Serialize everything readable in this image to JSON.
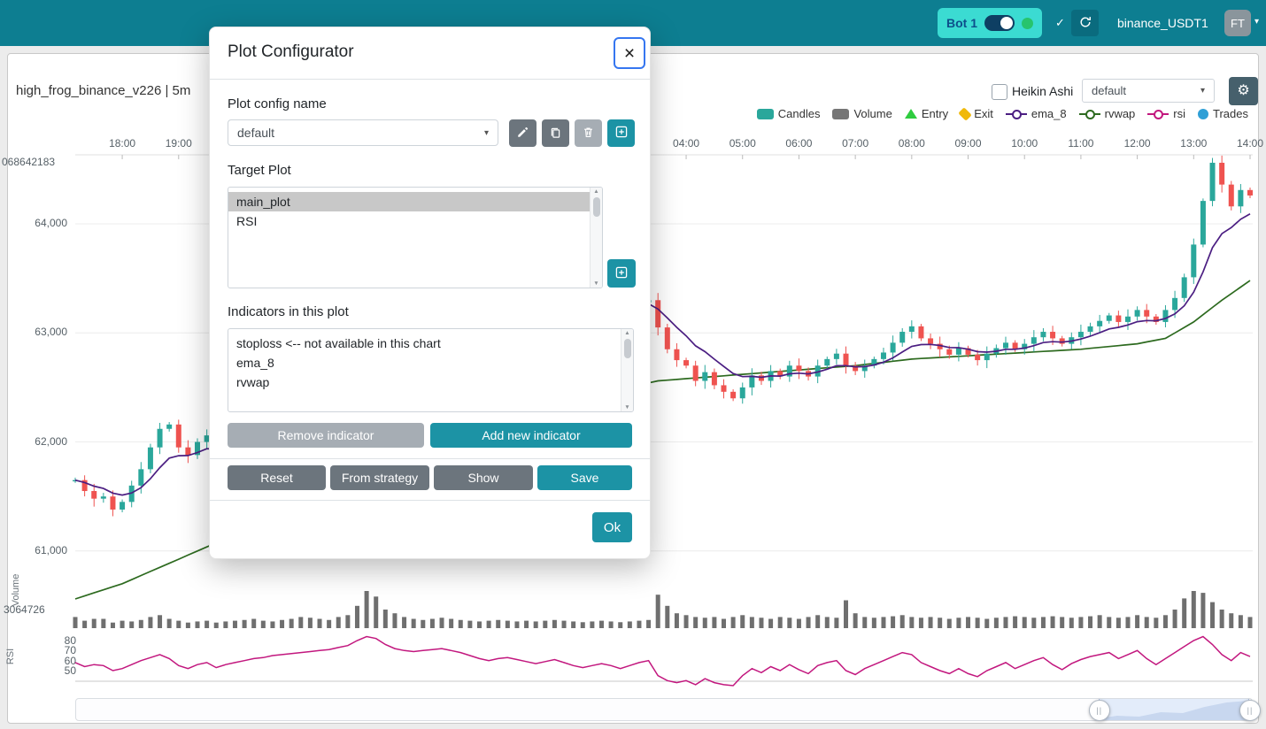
{
  "navbar": {
    "bot_label": "Bot 1",
    "check_icon": "✓",
    "pair_label": "binance_USDT1",
    "avatar_label": "FT",
    "caret_icon": "▾"
  },
  "chart": {
    "title": "high_frog_binance_v226 | 5m",
    "heikin_ashi_label": "Heikin Ashi",
    "theme_select_value": "default",
    "select_caret": "▾",
    "gear_icon": "⚙",
    "y_axis_top_label": "068642183",
    "volume_axis_label": "3064726",
    "volume_title": "Volume",
    "rsi_title": "RSI",
    "legend": [
      {
        "label": "Candles",
        "type": "rect",
        "color": "#2aa79b"
      },
      {
        "label": "Volume",
        "type": "rect",
        "color": "#767676"
      },
      {
        "label": "Entry",
        "type": "triangle",
        "color": "#2fcc3f"
      },
      {
        "label": "Exit",
        "type": "diamond",
        "color": "#f0b90b"
      },
      {
        "label": "ema_8",
        "type": "line",
        "color": "#4b1e82"
      },
      {
        "label": "rvwap",
        "type": "line",
        "color": "#2d6a1f"
      },
      {
        "label": "rsi",
        "type": "line",
        "color": "#c2177e"
      },
      {
        "label": "Trades",
        "type": "circle",
        "color": "#2f9fd6"
      }
    ],
    "price_ticks": [
      {
        "label": "64,000",
        "value": 64000
      },
      {
        "label": "63,000",
        "value": 63000
      },
      {
        "label": "62,000",
        "value": 62000
      },
      {
        "label": "61,000",
        "value": 61000
      }
    ],
    "rsi_ticks": [
      {
        "label": "80",
        "value": 80
      },
      {
        "label": "70",
        "value": 70
      },
      {
        "label": "60",
        "value": 60
      },
      {
        "label": "50",
        "value": 50
      }
    ],
    "time_ticks": [
      {
        "label": "18:00",
        "i": 5
      },
      {
        "label": "19:00",
        "i": 11
      },
      {
        "label": "04:00",
        "i": 65
      },
      {
        "label": "05:00",
        "i": 71
      },
      {
        "label": "06:00",
        "i": 77
      },
      {
        "label": "07:00",
        "i": 83
      },
      {
        "label": "08:00",
        "i": 89
      },
      {
        "label": "09:00",
        "i": 95
      },
      {
        "label": "10:00",
        "i": 101
      },
      {
        "label": "11:00",
        "i": 107
      },
      {
        "label": "12:00",
        "i": 113
      },
      {
        "label": "13:00",
        "i": 119
      },
      {
        "label": "14:00",
        "i": 125
      }
    ],
    "zoom": {
      "start_pct": 86.9,
      "end_pct": 99.7,
      "handle_icon": "||"
    }
  },
  "modal": {
    "title": "Plot Configurator",
    "close_icon": "×",
    "config_name_label": "Plot config name",
    "config_select_value": "default",
    "target_plot_label": "Target Plot",
    "target_plots": [
      {
        "label": "main_plot",
        "selected": true
      },
      {
        "label": "RSI",
        "selected": false
      }
    ],
    "indicators_label": "Indicators in this plot",
    "indicators": [
      "stoploss <-- not available in this chart",
      "ema_8",
      "rvwap"
    ],
    "remove_indicator_label": "Remove indicator",
    "add_indicator_label": "Add new indicator",
    "reset_label": "Reset",
    "from_strategy_label": "From strategy",
    "show_label": "Show",
    "save_label": "Save",
    "ok_label": "Ok"
  },
  "chart_data": {
    "type": "candlestick+volume+rsi",
    "pair_timeframe": "high_frog_binance_v226 | 5m",
    "time_start": "17:10",
    "time_end": "14:00",
    "render_candle_minutes": 10,
    "visible_price_range": [
      60700,
      64640
    ],
    "closes": [
      61650,
      61550,
      61480,
      61500,
      61380,
      61450,
      61600,
      61750,
      61950,
      62120,
      62160,
      61950,
      61880,
      62000,
      62060,
      61930,
      62010,
      62100,
      62180,
      62250,
      62300,
      62380,
      62450,
      62500,
      62560,
      62600,
      62650,
      62700,
      62750,
      62800,
      62850,
      62900,
      62950,
      63000,
      63050,
      63100,
      63150,
      63200,
      63250,
      63300,
      63320,
      63350,
      63330,
      63300,
      63280,
      63300,
      63320,
      63300,
      63280,
      63250,
      63270,
      63300,
      63280,
      63250,
      63230,
      63250,
      63270,
      63250,
      63220,
      63250,
      63280,
      63300,
      63050,
      62850,
      62750,
      62700,
      62560,
      62640,
      62520,
      62460,
      62400,
      62500,
      62610,
      62560,
      62650,
      62600,
      62700,
      62650,
      62600,
      62700,
      62760,
      62810,
      62700,
      62650,
      62700,
      62760,
      62820,
      62910,
      63010,
      63060,
      62950,
      62900,
      62850,
      62800,
      62860,
      62800,
      62750,
      62810,
      62860,
      62910,
      62850,
      62900,
      62960,
      63010,
      62950,
      62900,
      62960,
      63010,
      63060,
      63110,
      63160,
      63100,
      63150,
      63210,
      63150,
      63100,
      63210,
      63320,
      63510,
      63810,
      64210,
      64560,
      64360,
      64160,
      64310,
      64260
    ],
    "volumes": [
      0.3,
      0.2,
      0.25,
      0.25,
      0.15,
      0.2,
      0.18,
      0.22,
      0.3,
      0.35,
      0.25,
      0.2,
      0.15,
      0.18,
      0.2,
      0.15,
      0.18,
      0.2,
      0.22,
      0.25,
      0.2,
      0.18,
      0.22,
      0.25,
      0.3,
      0.28,
      0.25,
      0.22,
      0.3,
      0.35,
      0.6,
      1.0,
      0.85,
      0.5,
      0.4,
      0.3,
      0.25,
      0.22,
      0.25,
      0.28,
      0.25,
      0.22,
      0.2,
      0.18,
      0.2,
      0.22,
      0.2,
      0.18,
      0.2,
      0.18,
      0.2,
      0.22,
      0.2,
      0.18,
      0.16,
      0.18,
      0.2,
      0.18,
      0.16,
      0.18,
      0.2,
      0.22,
      0.9,
      0.6,
      0.4,
      0.35,
      0.3,
      0.28,
      0.3,
      0.25,
      0.3,
      0.35,
      0.3,
      0.28,
      0.25,
      0.3,
      0.28,
      0.25,
      0.3,
      0.35,
      0.3,
      0.28,
      0.75,
      0.4,
      0.3,
      0.28,
      0.3,
      0.32,
      0.35,
      0.3,
      0.28,
      0.3,
      0.28,
      0.25,
      0.28,
      0.3,
      0.28,
      0.25,
      0.28,
      0.3,
      0.32,
      0.3,
      0.28,
      0.3,
      0.32,
      0.3,
      0.28,
      0.3,
      0.32,
      0.35,
      0.3,
      0.28,
      0.3,
      0.35,
      0.3,
      0.28,
      0.35,
      0.5,
      0.8,
      1.0,
      0.95,
      0.7,
      0.5,
      0.4,
      0.35,
      0.3
    ],
    "rsi": [
      58,
      54,
      56,
      55,
      50,
      52,
      56,
      60,
      63,
      66,
      62,
      55,
      52,
      56,
      58,
      53,
      56,
      58,
      60,
      62,
      63,
      65,
      66,
      67,
      68,
      69,
      70,
      71,
      73,
      75,
      80,
      84,
      82,
      76,
      72,
      70,
      69,
      70,
      71,
      72,
      70,
      68,
      65,
      62,
      60,
      62,
      63,
      61,
      59,
      57,
      59,
      61,
      58,
      55,
      53,
      55,
      57,
      55,
      52,
      55,
      58,
      60,
      45,
      40,
      38,
      40,
      36,
      42,
      38,
      36,
      35,
      45,
      52,
      48,
      54,
      50,
      56,
      51,
      47,
      55,
      58,
      60,
      50,
      46,
      52,
      56,
      60,
      64,
      68,
      66,
      58,
      54,
      50,
      47,
      52,
      47,
      44,
      50,
      54,
      58,
      52,
      56,
      60,
      63,
      56,
      51,
      57,
      61,
      64,
      66,
      68,
      62,
      66,
      70,
      62,
      56,
      62,
      68,
      74,
      80,
      84,
      76,
      66,
      60,
      68,
      64
    ],
    "rvwap_anchors": [
      [
        0,
        60560
      ],
      [
        5,
        60700
      ],
      [
        17,
        61150
      ],
      [
        33,
        61900
      ],
      [
        48,
        62300
      ],
      [
        62,
        62560
      ],
      [
        71,
        62620
      ],
      [
        77,
        62660
      ],
      [
        83,
        62700
      ],
      [
        89,
        62760
      ],
      [
        95,
        62790
      ],
      [
        101,
        62820
      ],
      [
        107,
        62850
      ],
      [
        113,
        62900
      ],
      [
        116,
        62950
      ],
      [
        119,
        63100
      ],
      [
        122,
        63300
      ],
      [
        125,
        63480
      ]
    ],
    "colors": {
      "up": "#2aa79b",
      "down": "#ef5350",
      "ema": "#4b1e82",
      "rvwap": "#2d6a1f",
      "rsi": "#c2177e",
      "volume": "#6f6f6f"
    }
  }
}
